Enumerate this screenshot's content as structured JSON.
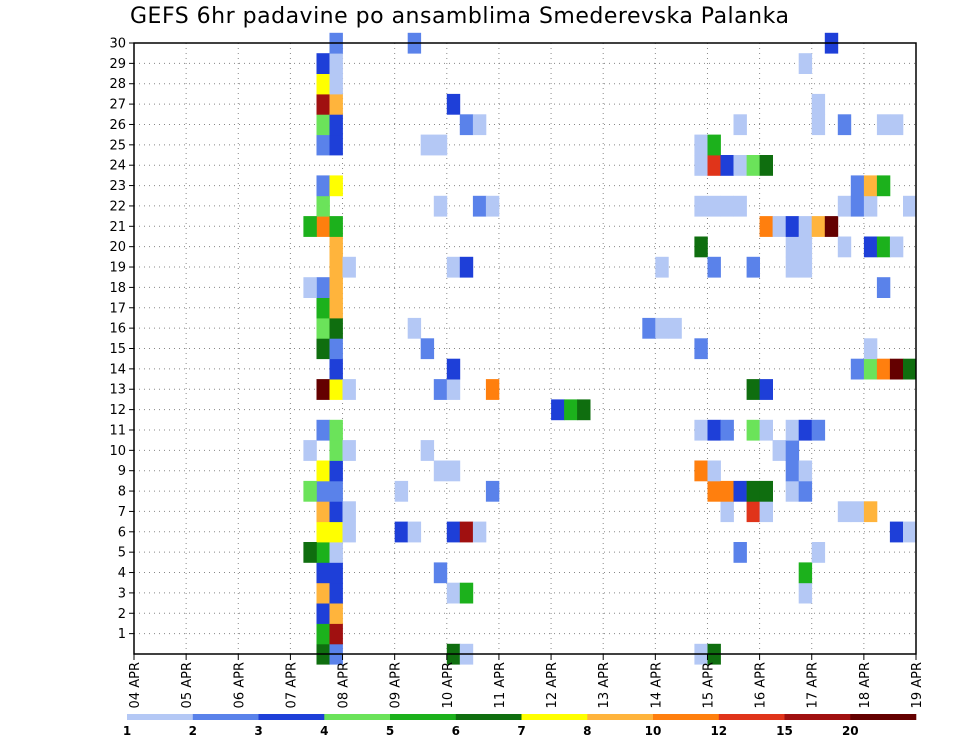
{
  "chart_data": {
    "type": "heatmap",
    "title": "GEFS 6hr padavine po ansamblima Smederevska Palanka",
    "x_ticks": [
      "04 APR",
      "05 APR",
      "06 APR",
      "07 APR",
      "08 APR",
      "09 APR",
      "10 APR",
      "11 APR",
      "12 APR",
      "13 APR",
      "14 APR",
      "15 APR",
      "16 APR",
      "17 APR",
      "18 APR",
      "19 APR"
    ],
    "y_ticks": [
      1,
      2,
      3,
      4,
      5,
      6,
      7,
      8,
      9,
      10,
      11,
      12,
      13,
      14,
      15,
      16,
      17,
      18,
      19,
      20,
      21,
      22,
      23,
      24,
      25,
      26,
      27,
      28,
      29,
      30
    ],
    "x_range": [
      "04 APR 00Z",
      "19 APR 00Z"
    ],
    "y_range": [
      0,
      30
    ],
    "time_step_hours": 6,
    "grid": "dotted",
    "legend": {
      "placement": "bottom",
      "labels": [
        "1",
        "2",
        "3",
        "4",
        "5",
        "6",
        "7",
        "8",
        "10",
        "12",
        "15",
        "20"
      ],
      "colors": [
        "#b4c8f5",
        "#5a82ea",
        "#1e3fd8",
        "#6be35a",
        "#1cb11c",
        "#0f6e0f",
        "#ffff00",
        "#ffb43c",
        "#ff7f0e",
        "#e0341a",
        "#a01010",
        "#640000"
      ]
    },
    "cells": [
      [
        "07 APR 12Z",
        0,
        6
      ],
      [
        "07 APR 12Z",
        1,
        5
      ],
      [
        "07 APR 12Z",
        2,
        3
      ],
      [
        "07 APR 12Z",
        3,
        8
      ],
      [
        "07 APR 12Z",
        4,
        3
      ],
      [
        "07 APR 12Z",
        5,
        5
      ],
      [
        "07 APR 12Z",
        6,
        7
      ],
      [
        "07 APR 12Z",
        7,
        8
      ],
      [
        "07 APR 12Z",
        8,
        2
      ],
      [
        "07 APR 12Z",
        9,
        7
      ],
      [
        "07 APR 12Z",
        11,
        2
      ],
      [
        "07 APR 12Z",
        13,
        20
      ],
      [
        "07 APR 12Z",
        15,
        6
      ],
      [
        "07 APR 12Z",
        16,
        4
      ],
      [
        "07 APR 12Z",
        17,
        5
      ],
      [
        "07 APR 12Z",
        18,
        2
      ],
      [
        "07 APR 12Z",
        21,
        10
      ],
      [
        "07 APR 12Z",
        22,
        4
      ],
      [
        "07 APR 12Z",
        23,
        2
      ],
      [
        "07 APR 12Z",
        25,
        2
      ],
      [
        "07 APR 12Z",
        26,
        4
      ],
      [
        "07 APR 12Z",
        27,
        15
      ],
      [
        "07 APR 12Z",
        28,
        7
      ],
      [
        "07 APR 12Z",
        29,
        3
      ],
      [
        "07 APR 06Z",
        5,
        6
      ],
      [
        "07 APR 06Z",
        8,
        4
      ],
      [
        "07 APR 06Z",
        10,
        1
      ],
      [
        "07 APR 06Z",
        18,
        1
      ],
      [
        "07 APR 06Z",
        21,
        5
      ],
      [
        "07 APR 18Z",
        0,
        2
      ],
      [
        "07 APR 18Z",
        1,
        15
      ],
      [
        "07 APR 18Z",
        2,
        8
      ],
      [
        "07 APR 18Z",
        3,
        3
      ],
      [
        "07 APR 18Z",
        4,
        3
      ],
      [
        "07 APR 18Z",
        5,
        1
      ],
      [
        "07 APR 18Z",
        6,
        7
      ],
      [
        "07 APR 18Z",
        7,
        3
      ],
      [
        "07 APR 18Z",
        8,
        2
      ],
      [
        "07 APR 18Z",
        9,
        3
      ],
      [
        "07 APR 18Z",
        10,
        4
      ],
      [
        "07 APR 18Z",
        11,
        4
      ],
      [
        "07 APR 18Z",
        13,
        7
      ],
      [
        "07 APR 18Z",
        14,
        3
      ],
      [
        "07 APR 18Z",
        15,
        2
      ],
      [
        "07 APR 18Z",
        16,
        6
      ],
      [
        "07 APR 18Z",
        17,
        8
      ],
      [
        "07 APR 18Z",
        18,
        8
      ],
      [
        "07 APR 18Z",
        19,
        8
      ],
      [
        "07 APR 18Z",
        20,
        8
      ],
      [
        "07 APR 18Z",
        21,
        5
      ],
      [
        "07 APR 18Z",
        23,
        7
      ],
      [
        "07 APR 18Z",
        25,
        3
      ],
      [
        "07 APR 18Z",
        26,
        3
      ],
      [
        "07 APR 18Z",
        27,
        8
      ],
      [
        "07 APR 18Z",
        28,
        1
      ],
      [
        "07 APR 18Z",
        29,
        1
      ],
      [
        "07 APR 18Z",
        30,
        2
      ],
      [
        "08 APR 00Z",
        6,
        1
      ],
      [
        "08 APR 00Z",
        7,
        1
      ],
      [
        "08 APR 00Z",
        10,
        1
      ],
      [
        "08 APR 00Z",
        13,
        1
      ],
      [
        "08 APR 00Z",
        19,
        1
      ],
      [
        "09 APR 00Z",
        6,
        3
      ],
      [
        "09 APR 00Z",
        8,
        1
      ],
      [
        "09 APR 06Z",
        6,
        1
      ],
      [
        "09 APR 06Z",
        16,
        1
      ],
      [
        "09 APR 06Z",
        30,
        2
      ],
      [
        "09 APR 12Z",
        10,
        1
      ],
      [
        "09 APR 12Z",
        15,
        2
      ],
      [
        "09 APR 12Z",
        25,
        1
      ],
      [
        "09 APR 18Z",
        4,
        2
      ],
      [
        "09 APR 18Z",
        9,
        1
      ],
      [
        "09 APR 18Z",
        13,
        2
      ],
      [
        "09 APR 18Z",
        22,
        1
      ],
      [
        "09 APR 18Z",
        25,
        1
      ],
      [
        "10 APR 00Z",
        0,
        6
      ],
      [
        "10 APR 00Z",
        3,
        1
      ],
      [
        "10 APR 00Z",
        6,
        3
      ],
      [
        "10 APR 00Z",
        9,
        1
      ],
      [
        "10 APR 00Z",
        13,
        1
      ],
      [
        "10 APR 00Z",
        14,
        3
      ],
      [
        "10 APR 00Z",
        19,
        1
      ],
      [
        "10 APR 00Z",
        27,
        3
      ],
      [
        "10 APR 06Z",
        0,
        1
      ],
      [
        "10 APR 06Z",
        3,
        5
      ],
      [
        "10 APR 06Z",
        6,
        15
      ],
      [
        "10 APR 06Z",
        19,
        3
      ],
      [
        "10 APR 06Z",
        26,
        2
      ],
      [
        "10 APR 12Z",
        6,
        1
      ],
      [
        "10 APR 12Z",
        22,
        2
      ],
      [
        "10 APR 12Z",
        26,
        1
      ],
      [
        "10 APR 18Z",
        22,
        1
      ],
      [
        "10 APR 18Z",
        8,
        2
      ],
      [
        "10 APR 18Z",
        13,
        10
      ],
      [
        "12 APR 00Z",
        12,
        3
      ],
      [
        "12 APR 06Z",
        12,
        5
      ],
      [
        "12 APR 12Z",
        12,
        6
      ],
      [
        "13 APR 18Z",
        16,
        2
      ],
      [
        "14 APR 00Z",
        19,
        1
      ],
      [
        "14 APR 00Z",
        16,
        1
      ],
      [
        "14 APR 06Z",
        16,
        1
      ],
      [
        "14 APR 18Z",
        0,
        1
      ],
      [
        "14 APR 18Z",
        9,
        10
      ],
      [
        "14 APR 18Z",
        11,
        1
      ],
      [
        "14 APR 18Z",
        15,
        2
      ],
      [
        "14 APR 18Z",
        20,
        6
      ],
      [
        "14 APR 18Z",
        22,
        1
      ],
      [
        "14 APR 18Z",
        24,
        1
      ],
      [
        "14 APR 18Z",
        25,
        1
      ],
      [
        "15 APR 00Z",
        0,
        6
      ],
      [
        "15 APR 00Z",
        8,
        10
      ],
      [
        "15 APR 00Z",
        9,
        1
      ],
      [
        "15 APR 00Z",
        11,
        3
      ],
      [
        "15 APR 00Z",
        19,
        2
      ],
      [
        "15 APR 00Z",
        22,
        1
      ],
      [
        "15 APR 00Z",
        24,
        12
      ],
      [
        "15 APR 00Z",
        25,
        5
      ],
      [
        "15 APR 06Z",
        7,
        1
      ],
      [
        "15 APR 06Z",
        8,
        10
      ],
      [
        "15 APR 06Z",
        11,
        2
      ],
      [
        "15 APR 06Z",
        22,
        1
      ],
      [
        "15 APR 06Z",
        24,
        3
      ],
      [
        "15 APR 12Z",
        5,
        2
      ],
      [
        "15 APR 12Z",
        8,
        3
      ],
      [
        "15 APR 12Z",
        22,
        1
      ],
      [
        "15 APR 12Z",
        24,
        1
      ],
      [
        "15 APR 12Z",
        26,
        1
      ],
      [
        "15 APR 18Z",
        7,
        12
      ],
      [
        "15 APR 18Z",
        8,
        6
      ],
      [
        "15 APR 18Z",
        11,
        4
      ],
      [
        "15 APR 18Z",
        13,
        6
      ],
      [
        "15 APR 18Z",
        19,
        2
      ],
      [
        "15 APR 18Z",
        24,
        4
      ],
      [
        "16 APR 00Z",
        7,
        1
      ],
      [
        "16 APR 00Z",
        8,
        6
      ],
      [
        "16 APR 00Z",
        11,
        1
      ],
      [
        "16 APR 00Z",
        13,
        3
      ],
      [
        "16 APR 00Z",
        21,
        10
      ],
      [
        "16 APR 00Z",
        24,
        6
      ],
      [
        "16 APR 06Z",
        10,
        1
      ],
      [
        "16 APR 06Z",
        21,
        1
      ],
      [
        "16 APR 12Z",
        8,
        1
      ],
      [
        "16 APR 12Z",
        9,
        2
      ],
      [
        "16 APR 12Z",
        10,
        2
      ],
      [
        "16 APR 12Z",
        11,
        1
      ],
      [
        "16 APR 12Z",
        19,
        1
      ],
      [
        "16 APR 12Z",
        20,
        1
      ],
      [
        "16 APR 12Z",
        21,
        3
      ],
      [
        "16 APR 18Z",
        3,
        1
      ],
      [
        "16 APR 18Z",
        4,
        5
      ],
      [
        "16 APR 18Z",
        8,
        2
      ],
      [
        "16 APR 18Z",
        9,
        1
      ],
      [
        "16 APR 18Z",
        11,
        3
      ],
      [
        "16 APR 18Z",
        19,
        1
      ],
      [
        "16 APR 18Z",
        20,
        1
      ],
      [
        "16 APR 18Z",
        21,
        1
      ],
      [
        "16 APR 18Z",
        29,
        1
      ],
      [
        "17 APR 00Z",
        5,
        1
      ],
      [
        "17 APR 00Z",
        11,
        2
      ],
      [
        "17 APR 00Z",
        21,
        8
      ],
      [
        "17 APR 00Z",
        26,
        1
      ],
      [
        "17 APR 00Z",
        27,
        1
      ],
      [
        "17 APR 06Z",
        21,
        20
      ],
      [
        "17 APR 06Z",
        30,
        3
      ],
      [
        "17 APR 12Z",
        7,
        1
      ],
      [
        "17 APR 12Z",
        20,
        1
      ],
      [
        "17 APR 12Z",
        22,
        1
      ],
      [
        "17 APR 12Z",
        26,
        2
      ],
      [
        "17 APR 18Z",
        7,
        1
      ],
      [
        "17 APR 18Z",
        14,
        2
      ],
      [
        "17 APR 18Z",
        22,
        2
      ],
      [
        "17 APR 18Z",
        23,
        2
      ],
      [
        "18 APR 00Z",
        7,
        8
      ],
      [
        "18 APR 00Z",
        14,
        4
      ],
      [
        "18 APR 00Z",
        15,
        1
      ],
      [
        "18 APR 00Z",
        20,
        3
      ],
      [
        "18 APR 00Z",
        22,
        1
      ],
      [
        "18 APR 00Z",
        23,
        8
      ],
      [
        "18 APR 06Z",
        14,
        10
      ],
      [
        "18 APR 06Z",
        18,
        2
      ],
      [
        "18 APR 06Z",
        20,
        5
      ],
      [
        "18 APR 06Z",
        23,
        5
      ],
      [
        "18 APR 06Z",
        26,
        1
      ],
      [
        "18 APR 12Z",
        6,
        3
      ],
      [
        "18 APR 12Z",
        14,
        20
      ],
      [
        "18 APR 12Z",
        20,
        1
      ],
      [
        "18 APR 12Z",
        26,
        1
      ],
      [
        "18 APR 18Z",
        6,
        1
      ],
      [
        "18 APR 18Z",
        14,
        6
      ],
      [
        "18 APR 18Z",
        22,
        1
      ]
    ]
  }
}
